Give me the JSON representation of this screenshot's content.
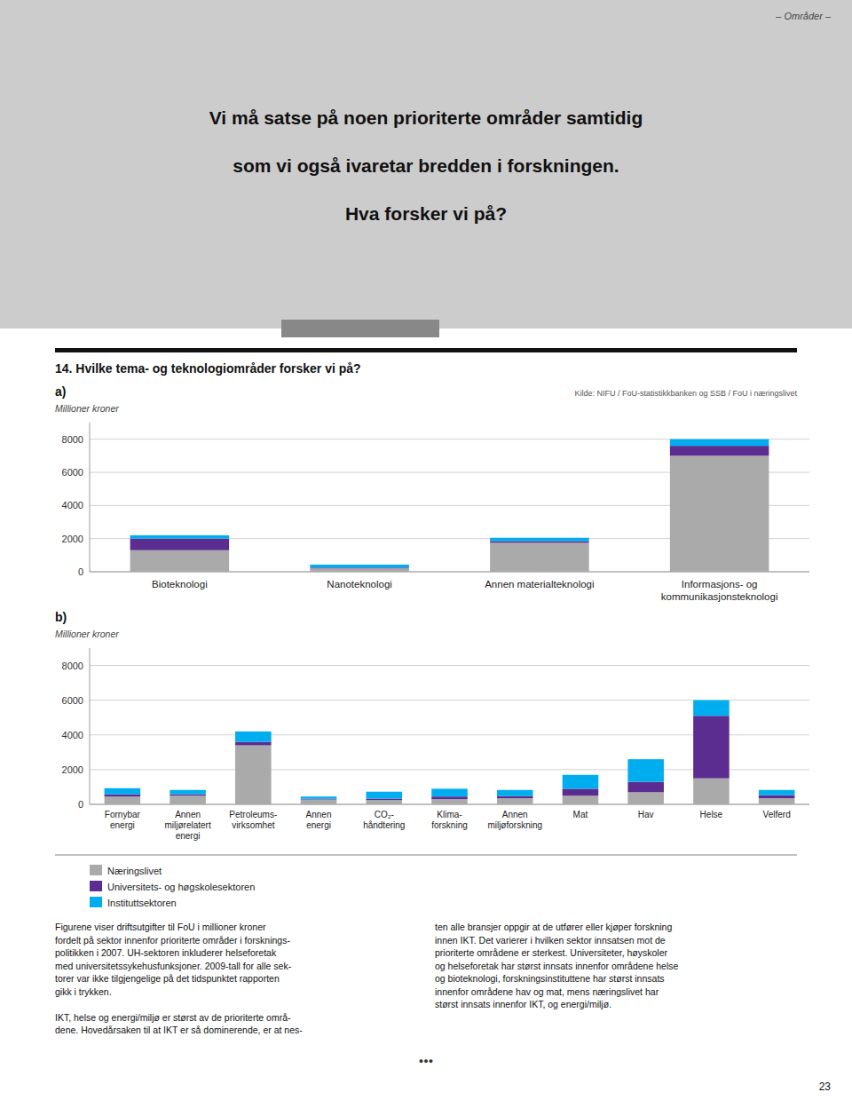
{
  "title": "14. Hvilke tema- og teknologiområder forsker vi på?",
  "annotations": [
    "– Områder –",
    "Vi må satse på noen prioriterte områder samtidig",
    "som vi også ivaretar bredden i forskningen.",
    "Hva forsker vi på?",
    "Kilde: NIFU / FoU-statistikkbanken og SSB / FoU i næringslivet",
    "Figurene viser driftsutgifter til FoU i millioner kroner\nfordelt på sektor innenfor prioriterte områder i forsknings-\npolitikken i 2007. UH-sektoren inkluderer helseforetak\nmed universitetssykehusfunksjoner. 2009-tall for alle sek-\ntorer var ikke tilgjengelige på det tidspunktet rapporten\ngikk i trykken.\n\nIKT, helse og energi/miljø er størst av de prioriterte områ-\ndene. Hovedårsaken til at IKT er så dominerende, er at nes-",
    "ten alle bransjer oppgir at de utfører eller kjøper forskning\ninnen IKT. Det varierer i hvilken sektor innsatsen mot de\nprioriterte områdene er sterkest. Universiteter, høyskoler\nog helseforetak har størst innsats innenfor områdene helse\nog bioteknologi, forskningsinstituttene har størst innsats\ninnenfor områdene hav og mat, mens næringslivet har\nstørst innsats innenfor IKT, og energi/miljø.",
    "●●●",
    "23"
  ],
  "chart_data": [
    {
      "type": "bar",
      "title": "a)",
      "ylabel": "Millioner kroner",
      "stacked": true,
      "grid": true,
      "categories": [
        "Bioteknologi",
        "Nanoteknologi",
        "Annen materialteknologi",
        "Informasjons- og\nkommunikasjonsteknologi"
      ],
      "series": [
        {
          "name": "Næringslivet",
          "color": "#aaaaaa",
          "values": [
            1300,
            200,
            1750,
            7000
          ]
        },
        {
          "name": "Universitets- og høgskolesektoren",
          "color": "#5c2d91",
          "values": [
            700,
            50,
            100,
            600
          ]
        },
        {
          "name": "Instituttsektoren",
          "color": "#00aeef",
          "values": [
            200,
            180,
            200,
            400
          ]
        }
      ],
      "ylim": [
        0,
        9000
      ],
      "yticks": [
        0,
        2000,
        4000,
        6000,
        8000
      ]
    },
    {
      "type": "bar",
      "title": "b)",
      "ylabel": "Millioner kroner",
      "stacked": true,
      "grid": true,
      "legend": "bottom left",
      "categories": [
        "Fornybar\nenergi",
        "Annen\nmiljørelatert\nenergi",
        "Petroleums-\nvirksomhet",
        "Annen\nenergi",
        "CO₂-\nhåndtering",
        "Klima-\nforskning",
        "Annen\nmiljøforskning",
        "Mat",
        "Hav",
        "Helse",
        "Velferd"
      ],
      "series": [
        {
          "name": "Næringslivet",
          "color": "#aaaaaa",
          "values": [
            450,
            500,
            3400,
            280,
            250,
            300,
            350,
            500,
            700,
            1500,
            350
          ]
        },
        {
          "name": "Universitets- og høgskolesektoren",
          "color": "#5c2d91",
          "values": [
            130,
            80,
            200,
            40,
            80,
            150,
            130,
            400,
            600,
            3600,
            180
          ]
        },
        {
          "name": "Instituttsektoren",
          "color": "#00aeef",
          "values": [
            350,
            250,
            600,
            130,
            400,
            450,
            350,
            800,
            1300,
            900,
            300
          ]
        }
      ],
      "ylim": [
        0,
        9000
      ],
      "yticks": [
        0,
        2000,
        4000,
        6000,
        8000
      ]
    }
  ]
}
